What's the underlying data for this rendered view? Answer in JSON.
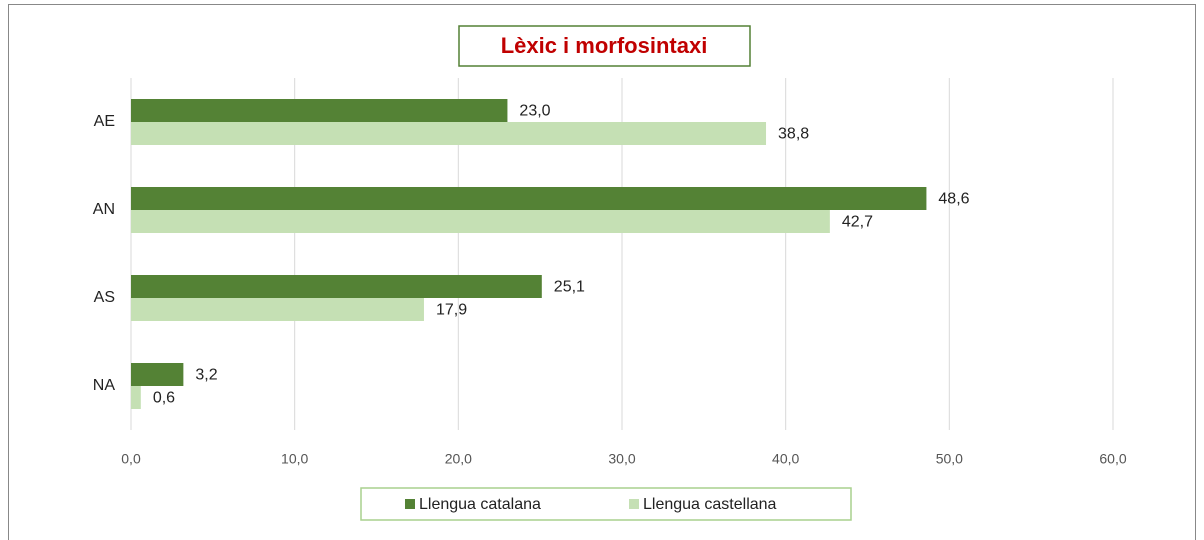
{
  "chart_data": {
    "type": "bar",
    "orientation": "horizontal",
    "title": "Lèxic i morfosintaxi",
    "categories": [
      "AE",
      "AN",
      "AS",
      "NA"
    ],
    "series": [
      {
        "name": "Llengua catalana",
        "color": "#548235",
        "values": [
          23.0,
          48.6,
          25.1,
          3.2
        ],
        "value_labels": [
          "23,0",
          "48,6",
          "25,1",
          "3,2"
        ]
      },
      {
        "name": "Llengua castellana",
        "color": "#c5e0b4",
        "values": [
          38.8,
          42.7,
          17.9,
          0.6
        ],
        "value_labels": [
          "38,8",
          "42,7",
          "17,9",
          "0,6"
        ]
      }
    ],
    "xlim": [
      0,
      60
    ],
    "xticks": [
      {
        "value": 0,
        "label": "0,0"
      },
      {
        "value": 10,
        "label": "10,0"
      },
      {
        "value": 20,
        "label": "20,0"
      },
      {
        "value": 30,
        "label": "30,0"
      },
      {
        "value": 40,
        "label": "40,0"
      },
      {
        "value": 50,
        "label": "50,0"
      },
      {
        "value": 60,
        "label": "60,0"
      }
    ],
    "grid": true,
    "legend": "bottom"
  }
}
